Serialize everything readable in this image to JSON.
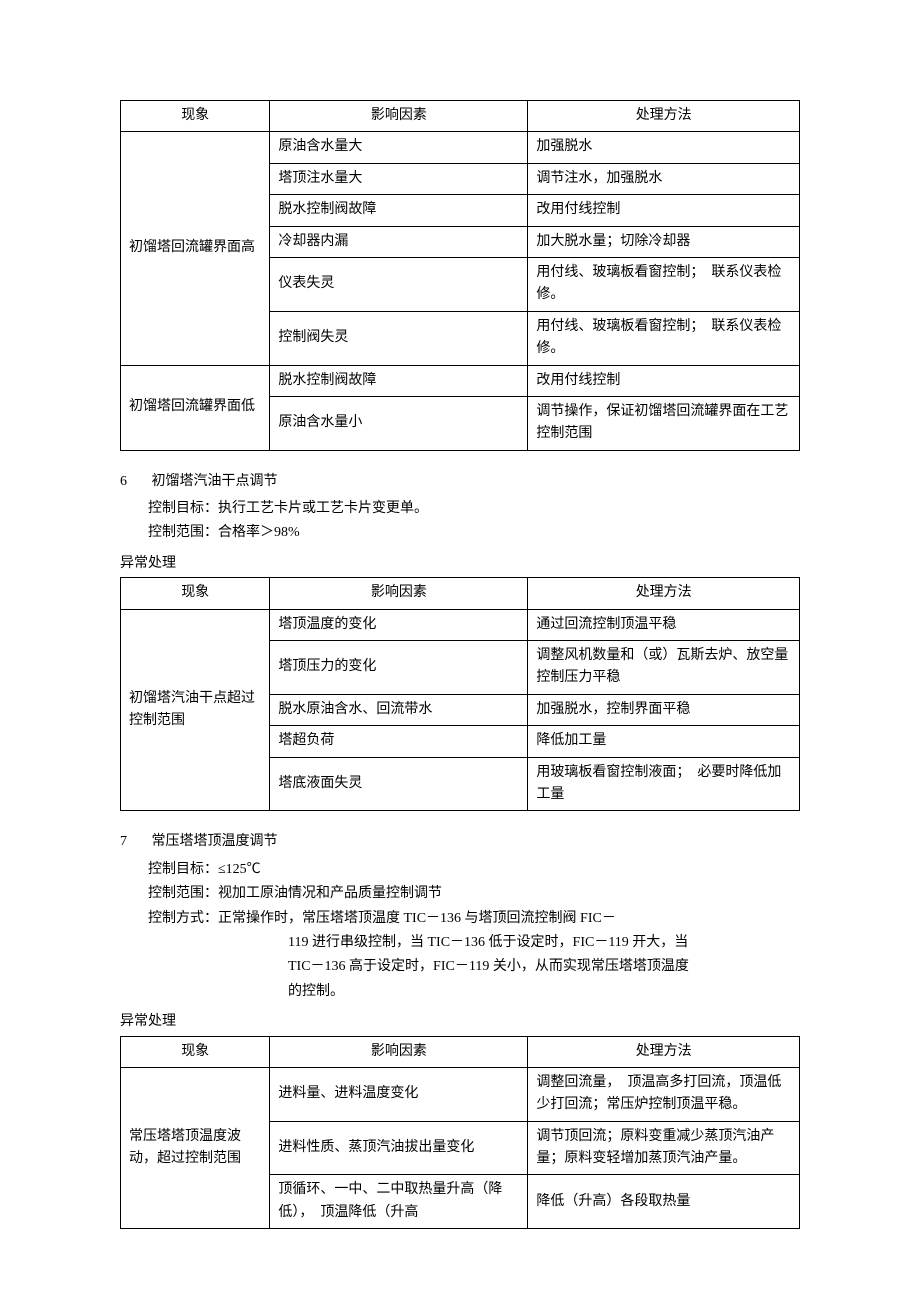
{
  "table1": {
    "headers": [
      "现象",
      "影响因素",
      "处理方法"
    ],
    "group1_label": "初馏塔回流罐界面高",
    "group1_rows": [
      [
        "原油含水量大",
        "加强脱水"
      ],
      [
        "塔顶注水量大",
        "调节注水，加强脱水"
      ],
      [
        "脱水控制阀故障",
        "改用付线控制"
      ],
      [
        "冷却器内漏",
        "加大脱水量；切除冷却器"
      ],
      [
        "仪表失灵",
        "用付线、玻璃板看窗控制；　联系仪表检修。"
      ],
      [
        "控制阀失灵",
        "用付线、玻璃板看窗控制；　联系仪表检修。"
      ]
    ],
    "group2_label": "初馏塔回流罐界面低",
    "group2_rows": [
      [
        "脱水控制阀故障",
        "改用付线控制"
      ],
      [
        "原油含水量小",
        "调节操作，保证初馏塔回流罐界面在工艺控制范围"
      ]
    ]
  },
  "section6": {
    "num": "6",
    "title": "初馏塔汽油干点调节",
    "target_label": "控制目标：",
    "target": "执行工艺卡片或工艺卡片变更单。",
    "range_label": "控制范围：",
    "range": "合格率＞98%",
    "abnormal": "异常处理"
  },
  "table2": {
    "headers": [
      "现象",
      "影响因素",
      "处理方法"
    ],
    "group_label": "初馏塔汽油干点超过控制范围",
    "rows": [
      [
        "塔顶温度的变化",
        "通过回流控制顶温平稳"
      ],
      [
        "塔顶压力的变化",
        "调整风机数量和（或）瓦斯去炉、放空量控制压力平稳"
      ],
      [
        "脱水原油含水、回流带水",
        "加强脱水，控制界面平稳"
      ],
      [
        "塔超负荷",
        "降低加工量"
      ],
      [
        "塔底液面失灵",
        "用玻璃板看窗控制液面；　必要时降低加工量"
      ]
    ]
  },
  "section7": {
    "num": "7",
    "title": "常压塔塔顶温度调节",
    "target_label": "控制目标：",
    "target": "≤125℃",
    "range_label": "控制范围：",
    "range": "视加工原油情况和产品质量控制调节",
    "method_label": "控制方式：",
    "method_l1": "正常操作时，常压塔塔顶温度 TIC－136 与塔顶回流控制阀 FIC－",
    "method_l2": "119 进行串级控制，当 TIC－136 低于设定时，FIC－119 开大，当",
    "method_l3": "TIC－136 高于设定时，FIC－119 关小，从而实现常压塔塔顶温度",
    "method_l4": "的控制。",
    "abnormal": "异常处理"
  },
  "table3": {
    "headers": [
      "现象",
      "影响因素",
      "处理方法"
    ],
    "group_label": "常压塔塔顶温度波动，超过控制范围",
    "rows": [
      [
        "进料量、进料温度变化",
        "调整回流量，　顶温高多打回流，顶温低少打回流；常压炉控制顶温平稳。"
      ],
      [
        "进料性质、蒸顶汽油拔出量变化",
        "调节顶回流；原料变重减少蒸顶汽油产量；原料变轻增加蒸顶汽油产量。"
      ],
      [
        "顶循环、一中、二中取热量升高（降低），　顶温降低（升高",
        "降低（升高）各段取热量"
      ]
    ]
  }
}
